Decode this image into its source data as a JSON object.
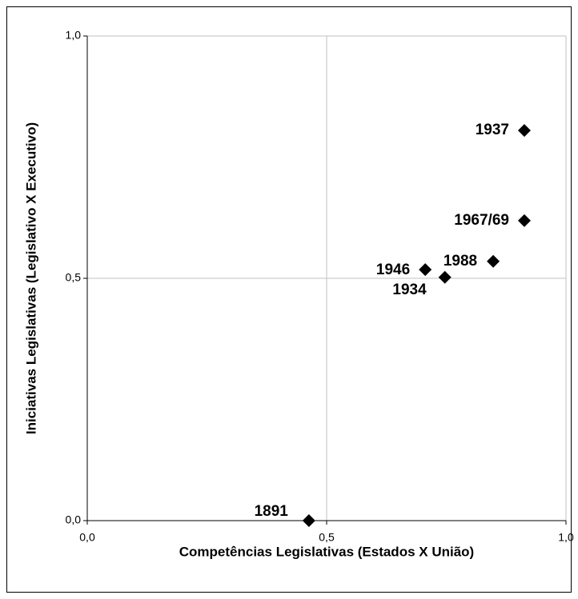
{
  "chart_data": {
    "type": "scatter",
    "x_label": "Competências Legislativas (Estados X União)",
    "y_label": "Iniciativas Legislativas  (Legislativo X Executivo)",
    "labels": [
      "1891",
      "1937",
      "1967/69",
      "1988",
      "1946",
      "1934"
    ],
    "x": [
      0.463,
      0.913,
      0.913,
      0.848,
      0.706,
      0.747
    ],
    "values": [
      0,
      0.805,
      0.619,
      0.535,
      0.518,
      0.502
    ],
    "color": "#000000",
    "xlim": [
      0,
      1
    ],
    "ylim": [
      0,
      1
    ],
    "xticks": [
      {
        "value": 0,
        "label": "0,0"
      },
      {
        "value": 0.5,
        "label": "0,5"
      },
      {
        "value": 1,
        "label": "1,0"
      }
    ],
    "yticks": [
      {
        "value": 0,
        "label": "0,0"
      },
      {
        "value": 0.5,
        "label": "0,5"
      },
      {
        "value": 1,
        "label": "1,0"
      }
    ],
    "grid": true
  }
}
